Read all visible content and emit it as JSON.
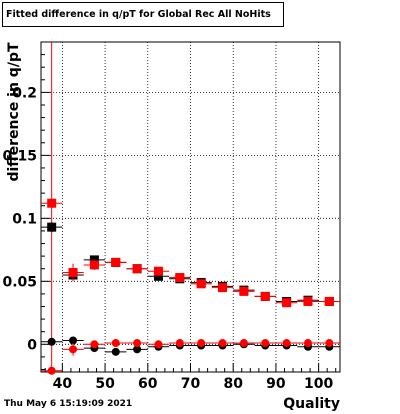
{
  "title": "Fitted difference in q/pT  for Global Rec All NoHits",
  "timestamp": "Thu May  6 15:19:09 2021",
  "colors": {
    "series_black": "#000000",
    "series_red": "#ff0000",
    "grid": "#000000"
  },
  "chart_data": {
    "type": "scatter",
    "xlabel": "Quality",
    "ylabel": "difference in q/pT",
    "xlim": [
      35,
      105
    ],
    "ylim": [
      -0.022,
      0.24
    ],
    "x_ticks": [
      40,
      50,
      60,
      70,
      80,
      90,
      100
    ],
    "x_tick_labels": [
      "40",
      "50",
      "60",
      "70",
      "80",
      "90",
      "100"
    ],
    "y_ticks": [
      0,
      0.05,
      0.1,
      0.15,
      0.2
    ],
    "y_tick_labels": [
      "0",
      "0.05",
      "0.1",
      "0.15",
      "0.2"
    ],
    "grid": true,
    "vertical_marker_x": 37.5,
    "series": [
      {
        "color": "#000000",
        "marker": "square",
        "x": [
          37.5,
          42.5,
          47.5,
          52.5,
          57.5,
          62.5,
          67.5,
          72.5,
          77.5,
          82.5,
          87.5,
          92.5,
          97.5,
          102.5
        ],
        "y": [
          0.093,
          0.055,
          0.067,
          0.065,
          0.06,
          0.054,
          0.052,
          0.049,
          0.046,
          0.043,
          0.038,
          0.034,
          0.035,
          0.034
        ],
        "yerr": [
          0.004,
          0.004,
          0.003,
          0.002,
          0.002,
          0.002,
          0.002,
          0.002,
          0.002,
          0.002,
          0.002,
          0.002,
          0.002,
          0.002
        ]
      },
      {
        "color": "#ff0000",
        "marker": "square",
        "x": [
          37.5,
          42.5,
          47.5,
          52.5,
          57.5,
          62.5,
          67.5,
          72.5,
          77.5,
          82.5,
          87.5,
          92.5,
          97.5,
          102.5
        ],
        "y": [
          0.112,
          0.057,
          0.063,
          0.065,
          0.06,
          0.058,
          0.053,
          0.048,
          0.045,
          0.042,
          0.038,
          0.033,
          0.034,
          0.034
        ],
        "yerr": [
          0.004,
          0.007,
          0.004,
          0.002,
          0.002,
          0.002,
          0.002,
          0.002,
          0.002,
          0.002,
          0.002,
          0.002,
          0.002,
          0.002
        ]
      },
      {
        "color": "#000000",
        "marker": "circle",
        "x": [
          37.5,
          42.5,
          47.5,
          52.5,
          57.5,
          62.5,
          67.5,
          72.5,
          77.5,
          82.5,
          87.5,
          92.5,
          97.5,
          102.5
        ],
        "y": [
          0.002,
          0.003,
          -0.003,
          -0.006,
          -0.004,
          -0.002,
          -0.001,
          -0.001,
          -0.001,
          0.0,
          -0.001,
          -0.001,
          -0.002,
          -0.002
        ],
        "yerr": [
          0.002,
          0.003,
          0.002,
          0.002,
          0.002,
          0.001,
          0.001,
          0.001,
          0.001,
          0.001,
          0.001,
          0.001,
          0.001,
          0.001
        ]
      },
      {
        "color": "#ff0000",
        "marker": "circle",
        "x": [
          37.5,
          42.5,
          47.5,
          52.5,
          57.5,
          62.5,
          67.5,
          72.5,
          77.5,
          82.5,
          87.5,
          92.5,
          97.5,
          102.5
        ],
        "y": [
          -0.021,
          -0.004,
          0.0,
          0.001,
          0.001,
          0.0,
          0.001,
          0.001,
          0.001,
          0.001,
          0.001,
          0.001,
          0.001,
          0.001
        ],
        "yerr": [
          0.002,
          0.005,
          0.003,
          0.002,
          0.002,
          0.001,
          0.001,
          0.001,
          0.001,
          0.001,
          0.001,
          0.001,
          0.001,
          0.001
        ]
      }
    ]
  }
}
